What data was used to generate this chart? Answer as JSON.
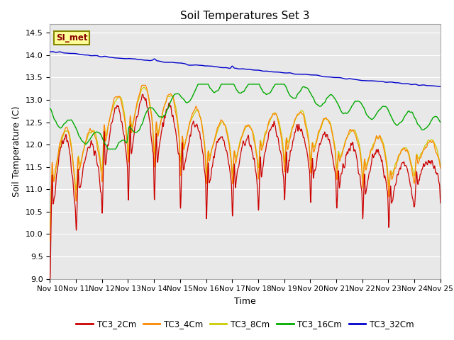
{
  "title": "Soil Temperatures Set 3",
  "xlabel": "Time",
  "ylabel": "Soil Temperature (C)",
  "ylim": [
    9.0,
    14.7
  ],
  "xlim": [
    0,
    360
  ],
  "bg_color": "#ffffff",
  "plot_bg": "#e8e8e8",
  "x_tick_labels": [
    "Nov 10",
    "Nov 11",
    "Nov 12",
    "Nov 13",
    "Nov 14",
    "Nov 15",
    "Nov 16",
    "Nov 17",
    "Nov 18",
    "Nov 19",
    "Nov 20",
    "Nov 21",
    "Nov 22",
    "Nov 23",
    "Nov 24",
    "Nov 25"
  ],
  "x_tick_positions": [
    0,
    24,
    48,
    72,
    96,
    120,
    144,
    168,
    192,
    216,
    240,
    264,
    288,
    312,
    336,
    360
  ],
  "y_ticks": [
    9.0,
    9.5,
    10.0,
    10.5,
    11.0,
    11.5,
    12.0,
    12.5,
    13.0,
    13.5,
    14.0,
    14.5
  ],
  "colors": {
    "TC3_2Cm": "#cc0000",
    "TC3_4Cm": "#ff8800",
    "TC3_8Cm": "#cccc00",
    "TC3_16Cm": "#00aa00",
    "TC3_32Cm": "#0000cc"
  },
  "annotation": "SI_met",
  "annotation_color": "#880000",
  "annotation_bg": "#ffff99",
  "annotation_border": "#888800"
}
